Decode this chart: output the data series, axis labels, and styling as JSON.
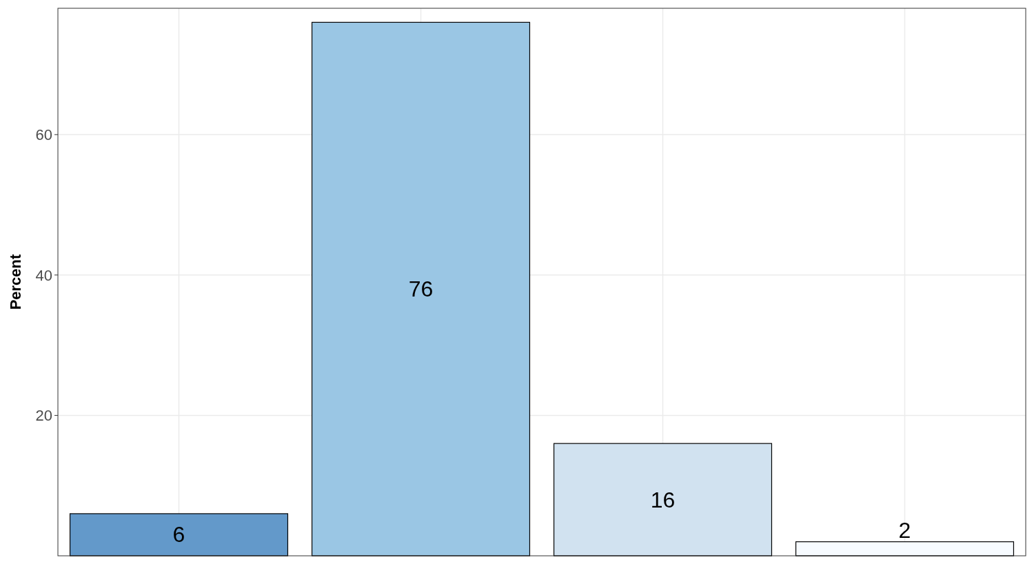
{
  "chart_data": {
    "type": "bar",
    "ylabel": "Percent",
    "categories": [
      null,
      null,
      null,
      null
    ],
    "values": [
      6,
      76,
      16,
      2
    ],
    "colors": [
      "#6399ca",
      "#9ac6e4",
      "#d1e2f0",
      "#f7fbff"
    ],
    "ylim": [
      0,
      78
    ],
    "yticks": [
      20,
      40,
      60
    ],
    "grid": true,
    "data_labels": true
  }
}
